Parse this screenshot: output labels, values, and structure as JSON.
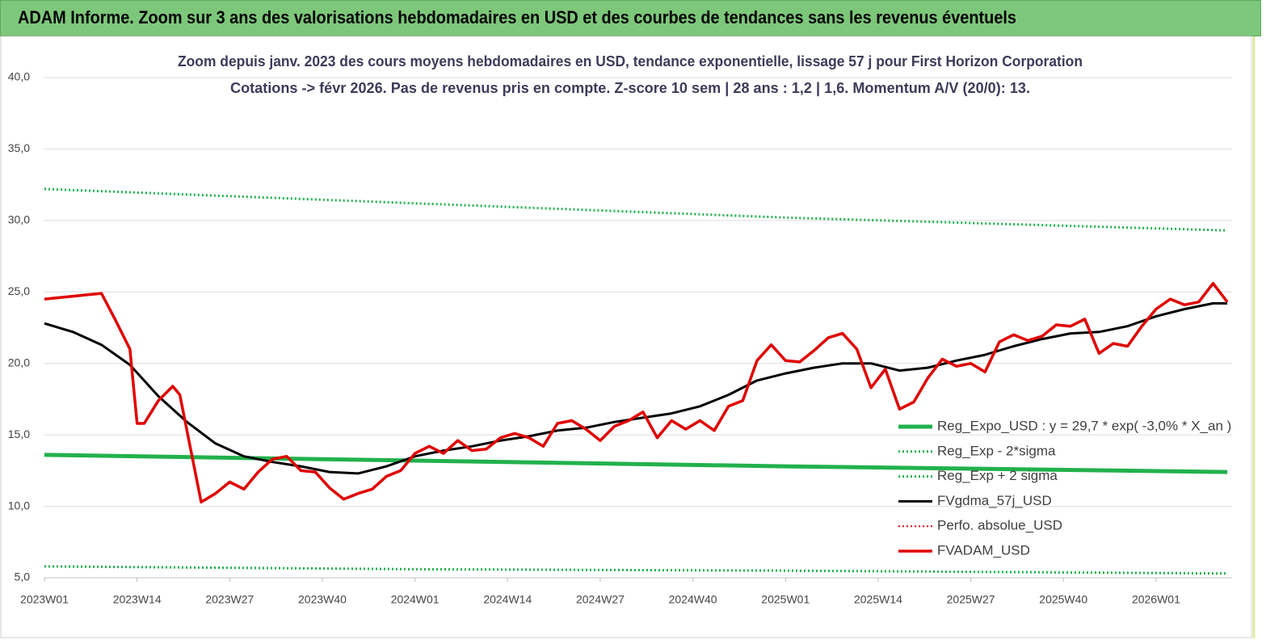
{
  "chart_data": {
    "type": "line",
    "header": "ADAM Informe. Zoom sur 3 ans des valorisations hebdomadaires en USD et des courbes de tendances sans les revenus éventuels",
    "title": "Zoom depuis janv. 2023 des cours moyens hebdomadaires en USD, tendance exponentielle, lissage 57 j pour First Horizon Corporation",
    "subtitle": "Cotations -> févr 2026.  Pas de revenus pris en compte. Z-score 10 sem  | 28 ans : 1,2 | 1,6. Momentum A/V (20/0): 13.",
    "ylim": [
      5,
      40
    ],
    "yticks": [
      {
        "value": 5,
        "label": "5,0"
      },
      {
        "value": 10,
        "label": "10,0"
      },
      {
        "value": 15,
        "label": "15,0"
      },
      {
        "value": 20,
        "label": "20,0"
      },
      {
        "value": 25,
        "label": "25,0"
      },
      {
        "value": 30,
        "label": "30,0"
      },
      {
        "value": 35,
        "label": "35,0"
      },
      {
        "value": 40,
        "label": "40,0"
      }
    ],
    "xticks": [
      "2023W01",
      "2023W14",
      "2023W27",
      "2023W40",
      "2024W01",
      "2024W14",
      "2024W27",
      "2024W40",
      "2025W01",
      "2025W14",
      "2025W27",
      "2025W40",
      "2026W01"
    ],
    "grid": true,
    "legend": "right",
    "series": [
      {
        "name": "Reg_Expo_USD : y = 29,7 * exp( -3,0% *  X_an )",
        "color": "#22b14c",
        "style": "solid",
        "width": 5,
        "x": [
          "2023W01",
          "2024W01",
          "2025W01",
          "2026W11"
        ],
        "values": [
          13.6,
          13.2,
          12.8,
          12.4
        ]
      },
      {
        "name": "Reg_Exp - 2*sigma",
        "color": "#22b14c",
        "style": "dotted",
        "width": 3,
        "x": [
          "2023W01",
          "2024W01",
          "2025W01",
          "2026W11"
        ],
        "values": [
          5.8,
          5.6,
          5.5,
          5.3
        ]
      },
      {
        "name": "Reg_Exp + 2 sigma",
        "color": "#22b14c",
        "style": "dotted",
        "width": 3,
        "x": [
          "2023W01",
          "2024W01",
          "2025W01",
          "2026W11"
        ],
        "values": [
          32.2,
          31.2,
          30.2,
          29.3
        ]
      },
      {
        "name": "FVgdma_57j_USD",
        "color": "#000000",
        "style": "solid",
        "width": 3,
        "x": [
          "2023W01",
          "2023W05",
          "2023W09",
          "2023W13",
          "2023W17",
          "2023W21",
          "2023W25",
          "2023W29",
          "2023W33",
          "2023W37",
          "2023W41",
          "2023W45",
          "2023W49",
          "2024W01",
          "2024W05",
          "2024W09",
          "2024W13",
          "2024W17",
          "2024W21",
          "2024W25",
          "2024W29",
          "2024W33",
          "2024W37",
          "2024W41",
          "2024W45",
          "2024W49",
          "2025W01",
          "2025W05",
          "2025W09",
          "2025W13",
          "2025W17",
          "2025W21",
          "2025W25",
          "2025W29",
          "2025W33",
          "2025W37",
          "2025W41",
          "2025W45",
          "2025W49",
          "2026W01",
          "2026W05",
          "2026W09",
          "2026W11"
        ],
        "values": [
          22.8,
          22.2,
          21.3,
          19.9,
          17.7,
          15.9,
          14.4,
          13.5,
          13.1,
          12.8,
          12.4,
          12.3,
          12.8,
          13.5,
          13.9,
          14.2,
          14.6,
          14.9,
          15.3,
          15.5,
          15.9,
          16.2,
          16.5,
          17.0,
          17.8,
          18.8,
          19.3,
          19.7,
          20.0,
          20.0,
          19.5,
          19.7,
          20.2,
          20.6,
          21.2,
          21.7,
          22.1,
          22.2,
          22.6,
          23.3,
          23.8,
          24.2,
          24.2
        ]
      },
      {
        "name": "Perfo. absolue_USD",
        "color": "#e00000",
        "style": "dotted",
        "width": 2,
        "x": [],
        "values": []
      },
      {
        "name": "FVADAM_USD",
        "color": "#e00000",
        "style": "solid",
        "width": 3.5,
        "x": [
          "2023W01",
          "2023W03",
          "2023W05",
          "2023W07",
          "2023W09",
          "2023W11",
          "2023W13",
          "2023W14",
          "2023W15",
          "2023W17",
          "2023W19",
          "2023W20",
          "2023W23",
          "2023W25",
          "2023W27",
          "2023W29",
          "2023W31",
          "2023W33",
          "2023W35",
          "2023W37",
          "2023W39",
          "2023W41",
          "2023W43",
          "2023W45",
          "2023W47",
          "2023W49",
          "2023W51",
          "2024W01",
          "2024W03",
          "2024W05",
          "2024W07",
          "2024W09",
          "2024W11",
          "2024W13",
          "2024W15",
          "2024W17",
          "2024W19",
          "2024W21",
          "2024W23",
          "2024W25",
          "2024W27",
          "2024W29",
          "2024W31",
          "2024W33",
          "2024W35",
          "2024W37",
          "2024W39",
          "2024W41",
          "2024W43",
          "2024W45",
          "2024W47",
          "2024W49",
          "2024W51",
          "2025W01",
          "2025W03",
          "2025W05",
          "2025W07",
          "2025W09",
          "2025W11",
          "2025W13",
          "2025W15",
          "2025W17",
          "2025W19",
          "2025W21",
          "2025W23",
          "2025W25",
          "2025W27",
          "2025W29",
          "2025W31",
          "2025W33",
          "2025W35",
          "2025W37",
          "2025W39",
          "2025W41",
          "2025W43",
          "2025W45",
          "2025W47",
          "2025W49",
          "2025W51",
          "2026W01",
          "2026W03",
          "2026W05",
          "2026W07",
          "2026W09",
          "2026W11"
        ],
        "values": [
          24.5,
          24.6,
          24.7,
          24.8,
          24.9,
          23.0,
          21.0,
          15.8,
          15.8,
          17.4,
          18.4,
          17.8,
          10.3,
          10.9,
          11.7,
          11.2,
          12.4,
          13.3,
          13.5,
          12.5,
          12.4,
          11.3,
          10.5,
          10.9,
          11.2,
          12.1,
          12.5,
          13.7,
          14.2,
          13.7,
          14.6,
          13.9,
          14.0,
          14.8,
          15.1,
          14.8,
          14.2,
          15.8,
          16.0,
          15.4,
          14.6,
          15.6,
          16.0,
          16.6,
          14.8,
          16.0,
          15.4,
          16.0,
          15.3,
          17.0,
          17.4,
          20.2,
          21.3,
          20.2,
          20.1,
          20.9,
          21.8,
          22.1,
          21.0,
          18.3,
          19.6,
          16.8,
          17.3,
          19.0,
          20.3,
          19.8,
          20.0,
          19.4,
          21.5,
          22.0,
          21.6,
          21.9,
          22.7,
          22.6,
          23.1,
          20.7,
          21.4,
          21.2,
          22.6,
          23.8,
          24.5,
          24.1,
          24.3,
          25.6,
          24.3
        ]
      }
    ]
  }
}
